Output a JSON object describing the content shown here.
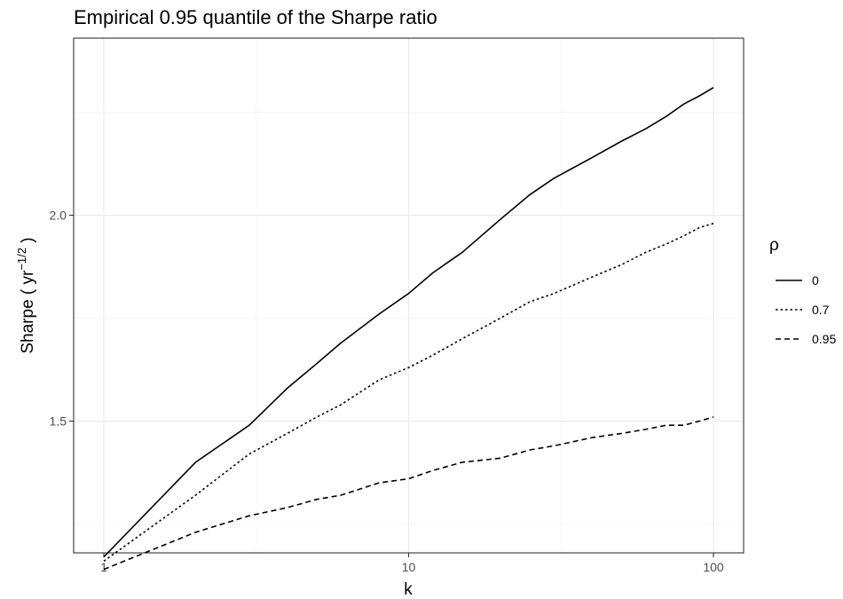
{
  "chart_data": {
    "type": "line",
    "title": "Empirical 0.95 quantile of the Sharpe ratio",
    "xlabel": "k",
    "ylabel": "Sharpe ( yr",
    "ylabel_exponent": "−1/2",
    "ylabel_suffix": " )",
    "x_scale": "log10",
    "xlim": [
      1,
      100
    ],
    "ylim": [
      1.18,
      2.43
    ],
    "x_ticks": [
      1,
      10,
      100
    ],
    "x_tick_labels": [
      "1",
      "10",
      "100"
    ],
    "y_ticks": [
      1.5,
      2.0
    ],
    "y_tick_labels": [
      "1.5",
      "2.0"
    ],
    "grid": true,
    "legend": {
      "title": "ρ",
      "position": "right"
    },
    "x": [
      1,
      2,
      3,
      4,
      5,
      6,
      8,
      10,
      12,
      15,
      20,
      25,
      30,
      40,
      50,
      60,
      70,
      80,
      90,
      100
    ],
    "series": [
      {
        "name": "0",
        "dash": "solid",
        "values": [
          1.17,
          1.4,
          1.49,
          1.58,
          1.64,
          1.69,
          1.76,
          1.81,
          1.86,
          1.91,
          1.99,
          2.05,
          2.09,
          2.14,
          2.18,
          2.21,
          2.24,
          2.27,
          2.29,
          2.31
        ]
      },
      {
        "name": "0.7",
        "dash": "dotted",
        "values": [
          1.16,
          1.32,
          1.42,
          1.47,
          1.51,
          1.54,
          1.6,
          1.63,
          1.66,
          1.7,
          1.75,
          1.79,
          1.81,
          1.85,
          1.88,
          1.91,
          1.93,
          1.95,
          1.97,
          1.98
        ]
      },
      {
        "name": "0.95",
        "dash": "dashed",
        "values": [
          1.14,
          1.23,
          1.27,
          1.29,
          1.31,
          1.32,
          1.35,
          1.36,
          1.38,
          1.4,
          1.41,
          1.43,
          1.44,
          1.46,
          1.47,
          1.48,
          1.49,
          1.49,
          1.5,
          1.51
        ]
      }
    ]
  }
}
